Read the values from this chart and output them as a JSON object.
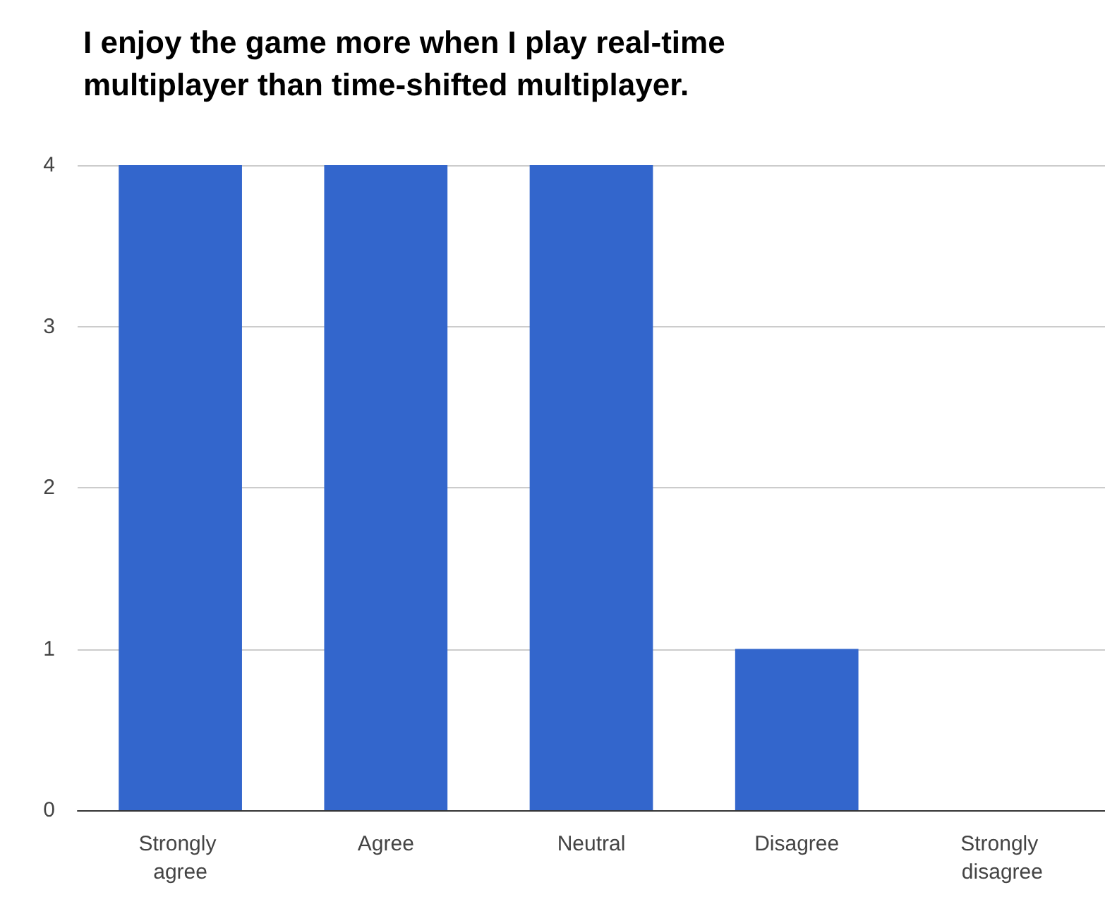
{
  "chart_data": {
    "type": "bar",
    "title": "I enjoy the game more when I play real-time multiplayer than time-shifted multiplayer.",
    "categories": [
      "Strongly agree",
      "Agree",
      "Neutral",
      "Disagree",
      "Strongly disagree"
    ],
    "values": [
      4,
      4,
      4,
      1,
      0
    ],
    "color": "#3366cc",
    "ylim": [
      0,
      4
    ],
    "yticks": [
      0,
      1,
      2,
      3,
      4
    ],
    "grid": "y"
  }
}
